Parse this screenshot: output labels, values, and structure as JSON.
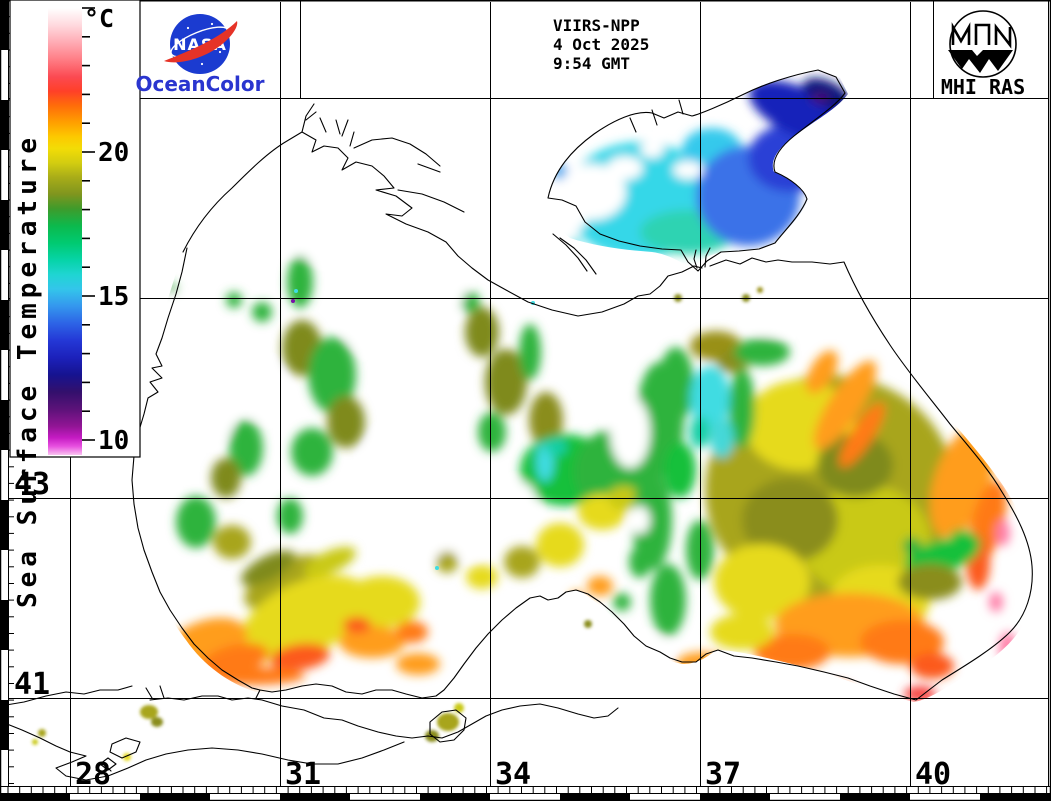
{
  "branding": {
    "nasa_wordmark": "NASA",
    "nasa_product": "OceanColor",
    "nasa_blue": "#1b3bd0",
    "nasa_red": "#e63327",
    "oceancolor_blue": "#2a35cf",
    "institute": "MHI RAS"
  },
  "observation": {
    "sensor": "VIIRS-NPP",
    "date": "4 Oct 2025",
    "time": "9:54 GMT"
  },
  "colorbar": {
    "title": "Sea Surface Temperature",
    "unit": "°C",
    "tick_labels": [
      "20",
      "15",
      "10"
    ],
    "tick_values_c": [
      20,
      15,
      10
    ],
    "minor_tick_step_c": 1,
    "stops": [
      {
        "c": 25.0,
        "hex": "#ffffff"
      },
      {
        "c": 24.4,
        "hex": "#ffd9de"
      },
      {
        "c": 23.8,
        "hex": "#ffabb4"
      },
      {
        "c": 23.2,
        "hex": "#ff7d85"
      },
      {
        "c": 22.6,
        "hex": "#fb4a52"
      },
      {
        "c": 22.1,
        "hex": "#ff4028"
      },
      {
        "c": 21.6,
        "hex": "#ff6c0a"
      },
      {
        "c": 21.0,
        "hex": "#ffa000"
      },
      {
        "c": 20.5,
        "hex": "#fdc900"
      },
      {
        "c": 20.1,
        "hex": "#f2dc06"
      },
      {
        "c": 19.6,
        "hex": "#d3cd10"
      },
      {
        "c": 19.1,
        "hex": "#a9ad18"
      },
      {
        "c": 18.5,
        "hex": "#7f951e"
      },
      {
        "c": 18.0,
        "hex": "#3f9b2b"
      },
      {
        "c": 17.4,
        "hex": "#0cb94d"
      },
      {
        "c": 16.8,
        "hex": "#00ca71"
      },
      {
        "c": 16.2,
        "hex": "#06d4a8"
      },
      {
        "c": 15.7,
        "hex": "#1fd5d2"
      },
      {
        "c": 15.2,
        "hex": "#33c6ea"
      },
      {
        "c": 14.6,
        "hex": "#3497ee"
      },
      {
        "c": 14.0,
        "hex": "#2d64e6"
      },
      {
        "c": 13.4,
        "hex": "#2438d6"
      },
      {
        "c": 12.8,
        "hex": "#1c21bb"
      },
      {
        "c": 12.2,
        "hex": "#161390"
      },
      {
        "c": 11.6,
        "hex": "#33106c"
      },
      {
        "c": 11.0,
        "hex": "#5c1279"
      },
      {
        "c": 10.4,
        "hex": "#921595"
      },
      {
        "c": 10.0,
        "hex": "#c51bc3"
      },
      {
        "c": 9.7,
        "hex": "#e851e0"
      },
      {
        "c": 9.4,
        "hex": "#f9c3f0"
      }
    ]
  },
  "grid": {
    "lat_labels": [
      "43",
      "41"
    ],
    "lon_labels": [
      "28",
      "31",
      "34",
      "37",
      "40"
    ]
  }
}
